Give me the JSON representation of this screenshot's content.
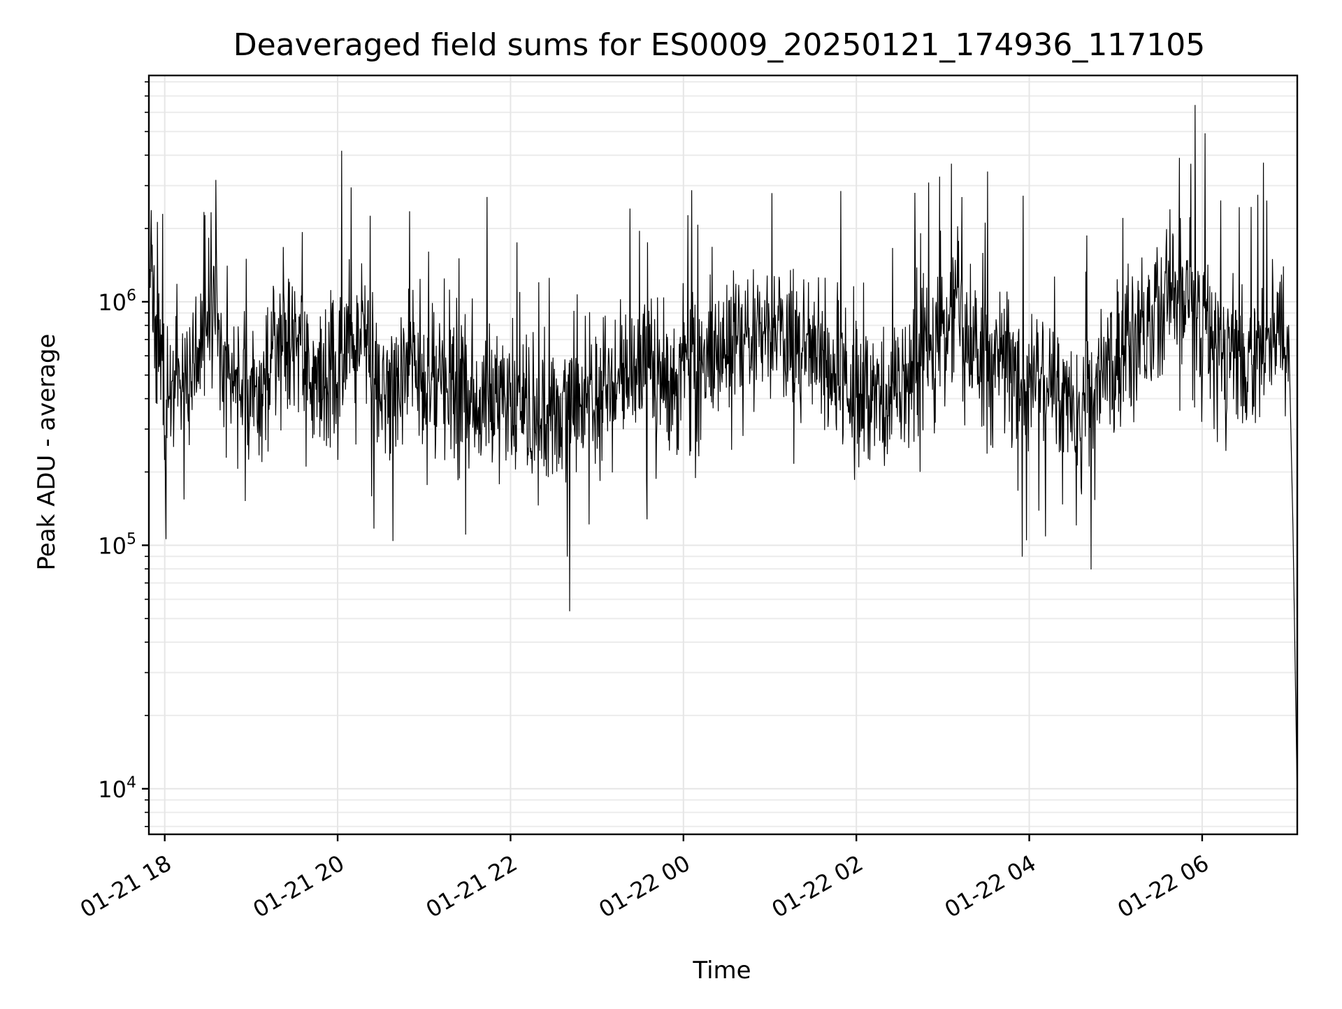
{
  "chart_data": {
    "type": "line",
    "title": "Deaveraged field sums for ES0009_20250121_174936_117105",
    "xlabel": "Time",
    "ylabel": "Peak ADU - average",
    "yscale": "log",
    "ylim": [
      6500,
      8500000
    ],
    "xlim": [
      "2025-01-21 17:49",
      "2025-01-22 07:06"
    ],
    "grid": true,
    "x_ticks": [
      {
        "label": "01-21 18",
        "t": "2025-01-21 18:00"
      },
      {
        "label": "01-21 20",
        "t": "2025-01-21 20:00"
      },
      {
        "label": "01-21 22",
        "t": "2025-01-21 22:00"
      },
      {
        "label": "01-22 00",
        "t": "2025-01-22 00:00"
      },
      {
        "label": "01-22 02",
        "t": "2025-01-22 02:00"
      },
      {
        "label": "01-22 04",
        "t": "2025-01-22 04:00"
      },
      {
        "label": "01-22 06",
        "t": "2025-01-22 06:00"
      }
    ],
    "y_ticks": [
      {
        "base": "10",
        "exp": "4",
        "value": 10000
      },
      {
        "base": "10",
        "exp": "5",
        "value": 100000
      },
      {
        "base": "10",
        "exp": "6",
        "value": 1000000
      }
    ],
    "series": [
      {
        "color": "#000000",
        "x": [
          "2025-01-21 17:49",
          "2025-01-21 18:00",
          "2025-01-21 18:10",
          "2025-01-21 18:20",
          "2025-01-21 18:30",
          "2025-01-21 18:40",
          "2025-01-21 18:50",
          "2025-01-21 19:00",
          "2025-01-21 19:10",
          "2025-01-21 19:20",
          "2025-01-21 19:30",
          "2025-01-21 19:40",
          "2025-01-21 19:50",
          "2025-01-21 20:00",
          "2025-01-21 20:10",
          "2025-01-21 20:20",
          "2025-01-21 20:30",
          "2025-01-21 20:40",
          "2025-01-21 20:50",
          "2025-01-21 21:00",
          "2025-01-21 21:10",
          "2025-01-21 21:20",
          "2025-01-21 21:30",
          "2025-01-21 21:40",
          "2025-01-21 21:50",
          "2025-01-21 22:00",
          "2025-01-21 22:10",
          "2025-01-21 22:20",
          "2025-01-21 22:30",
          "2025-01-21 22:40",
          "2025-01-21 22:50",
          "2025-01-21 23:00",
          "2025-01-21 23:10",
          "2025-01-21 23:20",
          "2025-01-21 23:30",
          "2025-01-21 23:40",
          "2025-01-21 23:50",
          "2025-01-22 00:00",
          "2025-01-22 00:10",
          "2025-01-22 00:20",
          "2025-01-22 00:30",
          "2025-01-22 00:40",
          "2025-01-22 00:50",
          "2025-01-22 01:00",
          "2025-01-22 01:10",
          "2025-01-22 01:20",
          "2025-01-22 01:30",
          "2025-01-22 01:40",
          "2025-01-22 01:50",
          "2025-01-22 02:00",
          "2025-01-22 02:10",
          "2025-01-22 02:20",
          "2025-01-22 02:30",
          "2025-01-22 02:40",
          "2025-01-22 02:50",
          "2025-01-22 03:00",
          "2025-01-22 03:10",
          "2025-01-22 03:20",
          "2025-01-22 03:30",
          "2025-01-22 03:40",
          "2025-01-22 03:50",
          "2025-01-22 04:00",
          "2025-01-22 04:10",
          "2025-01-22 04:20",
          "2025-01-22 04:30",
          "2025-01-22 04:40",
          "2025-01-22 04:50",
          "2025-01-22 05:00",
          "2025-01-22 05:10",
          "2025-01-22 05:20",
          "2025-01-22 05:30",
          "2025-01-22 05:40",
          "2025-01-22 05:50",
          "2025-01-22 06:00",
          "2025-01-22 06:10",
          "2025-01-22 06:20",
          "2025-01-22 06:30",
          "2025-01-22 06:40",
          "2025-01-22 06:50",
          "2025-01-22 07:00",
          "2025-01-22 07:03",
          "2025-01-22 07:06"
        ],
        "y": [
          1400000,
          400000,
          450000,
          500000,
          1000000,
          550000,
          480000,
          420000,
          460000,
          620000,
          700000,
          520000,
          450000,
          550000,
          650000,
          720000,
          480000,
          500000,
          600000,
          450000,
          420000,
          520000,
          380000,
          400000,
          360000,
          350000,
          330000,
          300000,
          340000,
          380000,
          420000,
          400000,
          450000,
          600000,
          500000,
          480000,
          520000,
          550000,
          560000,
          600000,
          650000,
          680000,
          700000,
          800000,
          720000,
          650000,
          600000,
          550000,
          520000,
          450000,
          400000,
          380000,
          420000,
          500000,
          600000,
          700000,
          900000,
          750000,
          650000,
          550000,
          520000,
          480000,
          450000,
          420000,
          400000,
          430000,
          470000,
          520000,
          600000,
          750000,
          900000,
          1000000,
          1100000,
          800000,
          750000,
          700000,
          600000,
          650000,
          700000,
          600000,
          120000,
          9000
        ]
      }
    ]
  }
}
